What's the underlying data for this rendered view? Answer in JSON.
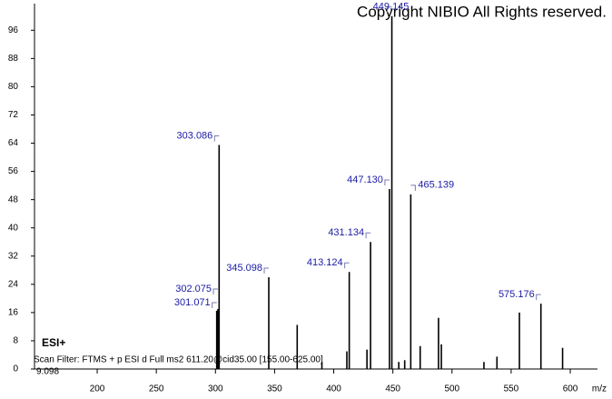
{
  "chart_data": {
    "type": "stem",
    "title": "Copyright NIBIO All Rights reserved.",
    "ion_mode": "ESI+",
    "scan_filter": "Scan Filter: FTMS + p ESI d Full ms2 611.20@cid35.00 [155.00-625.00]",
    "retention_time": "9.098",
    "x_label": "m/z",
    "x": [
      301.071,
      302.075,
      303.086,
      345.098,
      369.1,
      390.0,
      411.1,
      413.124,
      428.1,
      431.134,
      447.13,
      449.145,
      455.0,
      460.0,
      465.139,
      473.1,
      488.6,
      491.0,
      527.0,
      538.0,
      557.0,
      575.176,
      593.5
    ],
    "values": [
      16.5,
      17,
      63.5,
      26,
      12.5,
      2,
      5,
      27.5,
      5.5,
      36,
      51,
      100,
      2,
      2.5,
      49.5,
      6.5,
      14.5,
      7,
      2,
      3.5,
      16,
      18.5,
      6
    ],
    "x_labels": [
      "301.071",
      "302.075",
      "303.086",
      "345.098",
      null,
      null,
      null,
      "413.124",
      null,
      "431.134",
      "447.130",
      "449.145",
      null,
      null,
      "465.139",
      null,
      null,
      null,
      null,
      null,
      null,
      "575.176",
      null
    ],
    "color": "#000000",
    "label_color": "#1a1aa6",
    "xlim": [
      147,
      623
    ],
    "ylim": [
      0,
      102
    ],
    "xticks": [
      200,
      250,
      300,
      350,
      400,
      450,
      500,
      550,
      600
    ],
    "yticks": [
      0,
      8,
      16,
      24,
      32,
      40,
      48,
      56,
      64,
      72,
      80,
      88,
      96
    ]
  }
}
